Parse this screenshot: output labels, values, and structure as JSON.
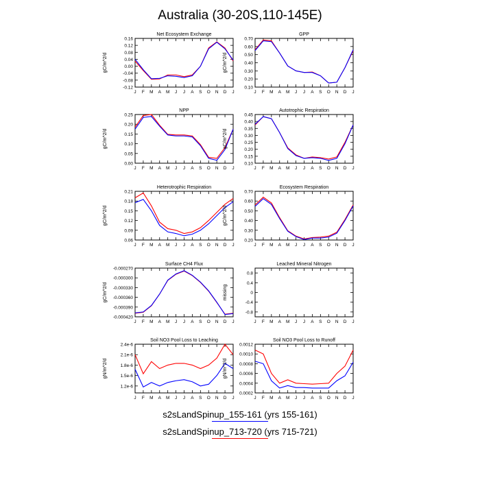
{
  "title": "Australia (30-20S,110-145E)",
  "colors": {
    "series1": "#0000ff",
    "series2": "#ff0000"
  },
  "legend": [
    {
      "label": "s2sLandSpinup_155-161 (yrs 155-161)",
      "color": "#0000ff"
    },
    {
      "label": "s2sLandSpinup_713-720 (yrs 715-721)",
      "color": "#ff0000"
    }
  ],
  "chart_data": [
    {
      "type": "line",
      "title": "Net Ecosystem Exchange",
      "ylabel": "gC/m^2/d",
      "x": [
        "J",
        "F",
        "M",
        "A",
        "M",
        "J",
        "J",
        "A",
        "S",
        "O",
        "N",
        "D",
        "J"
      ],
      "ylim": [
        -0.12,
        0.16
      ],
      "yticks": [
        "-0.12",
        "-0.08",
        "-0.04",
        "0.00",
        "0.04",
        "0.08",
        "0.12",
        "0.16"
      ],
      "yticks_values": [
        -0.12,
        -0.08,
        -0.04,
        0.0,
        0.04,
        0.08,
        0.12,
        0.16
      ],
      "series": [
        {
          "color": "#0000ff",
          "values": [
            0.04,
            -0.02,
            -0.072,
            -0.07,
            -0.055,
            -0.058,
            -0.065,
            -0.055,
            0.0,
            0.1,
            0.138,
            0.1,
            0.035
          ]
        },
        {
          "color": "#ff0000",
          "values": [
            0.03,
            -0.025,
            -0.075,
            -0.073,
            -0.05,
            -0.05,
            -0.06,
            -0.05,
            0.0,
            0.105,
            0.14,
            0.105,
            0.03
          ]
        }
      ]
    },
    {
      "type": "line",
      "title": "GPP",
      "ylabel": "gC/m^2/d",
      "x": [
        "J",
        "F",
        "M",
        "A",
        "M",
        "J",
        "J",
        "A",
        "S",
        "O",
        "N",
        "D",
        "J"
      ],
      "ylim": [
        0.1,
        0.7
      ],
      "yticks": [
        "0.10",
        "0.20",
        "0.30",
        "0.40",
        "0.50",
        "0.60",
        "0.70"
      ],
      "yticks_values": [
        0.1,
        0.2,
        0.3,
        0.4,
        0.5,
        0.6,
        0.7
      ],
      "series": [
        {
          "color": "#0000ff",
          "values": [
            0.55,
            0.67,
            0.66,
            0.52,
            0.36,
            0.3,
            0.28,
            0.28,
            0.24,
            0.15,
            0.16,
            0.34,
            0.56
          ]
        },
        {
          "color": "#ff0000",
          "values": [
            0.56,
            0.68,
            0.67,
            0.52,
            0.36,
            0.3,
            0.28,
            0.285,
            0.24,
            0.15,
            0.16,
            0.34,
            0.55
          ]
        }
      ]
    },
    {
      "type": "line",
      "title": "NPP",
      "ylabel": "gC/m^2/d",
      "x": [
        "J",
        "F",
        "M",
        "A",
        "M",
        "J",
        "J",
        "A",
        "S",
        "O",
        "N",
        "D",
        "J"
      ],
      "ylim": [
        0.0,
        0.25
      ],
      "yticks": [
        "0.00",
        "0.05",
        "0.10",
        "0.15",
        "0.20",
        "0.25"
      ],
      "yticks_values": [
        0.0,
        0.05,
        0.1,
        0.15,
        0.2,
        0.25
      ],
      "series": [
        {
          "color": "#0000ff",
          "values": [
            0.175,
            0.235,
            0.24,
            0.19,
            0.145,
            0.14,
            0.14,
            0.135,
            0.09,
            0.025,
            0.015,
            0.07,
            0.175
          ]
        },
        {
          "color": "#ff0000",
          "values": [
            0.185,
            0.245,
            0.25,
            0.195,
            0.148,
            0.145,
            0.145,
            0.14,
            0.095,
            0.03,
            0.025,
            0.08,
            0.175
          ]
        }
      ]
    },
    {
      "type": "line",
      "title": "Autotrophic Respiration",
      "ylabel": "gC/m^2/d",
      "x": [
        "J",
        "F",
        "M",
        "A",
        "M",
        "J",
        "J",
        "A",
        "S",
        "O",
        "N",
        "D",
        "J"
      ],
      "ylim": [
        0.1,
        0.45
      ],
      "yticks": [
        "0.10",
        "0.15",
        "0.20",
        "0.25",
        "0.30",
        "0.35",
        "0.40",
        "0.45"
      ],
      "yticks_values": [
        0.1,
        0.15,
        0.2,
        0.25,
        0.3,
        0.35,
        0.4,
        0.45
      ],
      "series": [
        {
          "color": "#0000ff",
          "values": [
            0.38,
            0.435,
            0.42,
            0.32,
            0.205,
            0.155,
            0.135,
            0.14,
            0.135,
            0.12,
            0.135,
            0.24,
            0.375
          ]
        },
        {
          "color": "#ff0000",
          "values": [
            0.375,
            0.435,
            0.42,
            0.32,
            0.21,
            0.16,
            0.135,
            0.145,
            0.14,
            0.13,
            0.145,
            0.25,
            0.375
          ]
        }
      ]
    },
    {
      "type": "line",
      "title": "Heterotrophic Respiration",
      "ylabel": "gC/m^2/d",
      "x": [
        "J",
        "F",
        "M",
        "A",
        "M",
        "J",
        "J",
        "A",
        "S",
        "O",
        "N",
        "D",
        "J"
      ],
      "ylim": [
        0.06,
        0.21
      ],
      "yticks": [
        "0.06",
        "0.09",
        "0.12",
        "0.15",
        "0.18",
        "0.21"
      ],
      "yticks_values": [
        0.06,
        0.09,
        0.12,
        0.15,
        0.18,
        0.21
      ],
      "series": [
        {
          "color": "#0000ff",
          "values": [
            0.175,
            0.185,
            0.15,
            0.105,
            0.085,
            0.08,
            0.073,
            0.078,
            0.09,
            0.11,
            0.135,
            0.16,
            0.178
          ]
        },
        {
          "color": "#ff0000",
          "values": [
            0.19,
            0.205,
            0.165,
            0.115,
            0.095,
            0.09,
            0.08,
            0.085,
            0.098,
            0.12,
            0.145,
            0.17,
            0.188
          ]
        }
      ]
    },
    {
      "type": "line",
      "title": "Ecosystem Respiration",
      "ylabel": "gC/m^2/d",
      "x": [
        "J",
        "F",
        "M",
        "A",
        "M",
        "J",
        "J",
        "A",
        "S",
        "O",
        "N",
        "D",
        "J"
      ],
      "ylim": [
        0.2,
        0.7
      ],
      "yticks": [
        "0.20",
        "0.30",
        "0.40",
        "0.50",
        "0.60",
        "0.70"
      ],
      "yticks_values": [
        0.2,
        0.3,
        0.4,
        0.5,
        0.6,
        0.7
      ],
      "series": [
        {
          "color": "#0000ff",
          "values": [
            0.545,
            0.625,
            0.565,
            0.42,
            0.29,
            0.235,
            0.205,
            0.22,
            0.22,
            0.23,
            0.27,
            0.4,
            0.55
          ]
        },
        {
          "color": "#ff0000",
          "values": [
            0.56,
            0.64,
            0.58,
            0.43,
            0.295,
            0.24,
            0.21,
            0.225,
            0.23,
            0.24,
            0.28,
            0.41,
            0.56
          ]
        }
      ]
    },
    {
      "type": "line",
      "title": "Surface CH4 Flux",
      "ylabel": "gC/m^2/d",
      "x": [
        "J",
        "F",
        "M",
        "A",
        "M",
        "J",
        "J",
        "A",
        "S",
        "O",
        "N",
        "D",
        "J"
      ],
      "ylim": [
        -0.00042,
        -0.00027
      ],
      "yticks": [
        "-0.000420",
        "-0.000390",
        "-0.000360",
        "-0.000330",
        "-0.000300",
        "-0.000270"
      ],
      "yticks_values": [
        -0.00042,
        -0.00039,
        -0.00036,
        -0.00033,
        -0.0003,
        -0.00027
      ],
      "series": [
        {
          "color": "#0000ff",
          "values": [
            -0.000408,
            -0.000405,
            -0.000385,
            -0.00035,
            -0.000307,
            -0.000288,
            -0.000278,
            -0.000292,
            -0.000313,
            -0.00034,
            -0.000375,
            -0.000413,
            -0.00041
          ]
        },
        {
          "color": "#ff0000",
          "values": [
            -0.000409,
            -0.000406,
            -0.000386,
            -0.00035,
            -0.000308,
            -0.000289,
            -0.000279,
            -0.000293,
            -0.000314,
            -0.000341,
            -0.000376,
            -0.000412,
            -0.000409
          ]
        }
      ]
    },
    {
      "type": "line",
      "title": "Leached Mineral Nitrogen",
      "ylabel": "missing",
      "x": [
        "J",
        "F",
        "M",
        "A",
        "M",
        "J",
        "J",
        "A",
        "S",
        "O",
        "N",
        "D",
        "J"
      ],
      "ylim": [
        -1.0,
        1.0
      ],
      "yticks": [
        "-0.8",
        "-0.4",
        "0",
        "0.4",
        "0.8"
      ],
      "yticks_values": [
        -0.8,
        -0.4,
        0.0,
        0.4,
        0.8
      ],
      "series": []
    },
    {
      "type": "line",
      "title": "Soil NO3 Pool Loss to Leaching",
      "ylabel": "gN/m^2/d",
      "x": [
        "J",
        "F",
        "M",
        "A",
        "M",
        "J",
        "J",
        "A",
        "S",
        "O",
        "N",
        "D",
        "J"
      ],
      "ylim": [
        1e-06,
        2.4e-06
      ],
      "yticks": [
        "1.2e-6",
        "1.5e-6",
        "1.8e-6",
        "2.1e-6",
        "2.4e-6"
      ],
      "yticks_values": [
        1.2e-06,
        1.5e-06,
        1.8e-06,
        2.1e-06,
        2.4e-06
      ],
      "series": [
        {
          "color": "#0000ff",
          "values": [
            1.68e-06,
            1.17e-06,
            1.3e-06,
            1.2e-06,
            1.3e-06,
            1.35e-06,
            1.38e-06,
            1.32e-06,
            1.2e-06,
            1.25e-06,
            1.5e-06,
            1.85e-06,
            1.7e-06
          ]
        },
        {
          "color": "#ff0000",
          "values": [
            2.1e-06,
            1.55e-06,
            1.9e-06,
            1.7e-06,
            1.8e-06,
            1.85e-06,
            1.85e-06,
            1.8e-06,
            1.7e-06,
            1.8e-06,
            2e-06,
            2.4e-06,
            2.1e-06
          ]
        }
      ]
    },
    {
      "type": "line",
      "title": "Soil NO3 Pool Loss to Runoff",
      "ylabel": "gN/m^2/d",
      "x": [
        "J",
        "F",
        "M",
        "A",
        "M",
        "J",
        "J",
        "A",
        "S",
        "O",
        "N",
        "D",
        "J"
      ],
      "ylim": [
        0.0002,
        0.0012
      ],
      "yticks": [
        "0.0002",
        "0.0004",
        "0.0006",
        "0.0008",
        "0.0010",
        "0.0012"
      ],
      "yticks_values": [
        0.0002,
        0.0004,
        0.0006,
        0.0008,
        0.001,
        0.0012
      ],
      "series": [
        {
          "color": "#0000ff",
          "values": [
            0.00085,
            0.0008,
            0.00045,
            0.0003,
            0.00035,
            0.00031,
            0.00031,
            0.0003,
            0.0003,
            0.0003,
            0.00045,
            0.00055,
            0.00083
          ]
        },
        {
          "color": "#ff0000",
          "values": [
            0.00108,
            0.001,
            0.0006,
            0.0004,
            0.00047,
            0.0004,
            0.00039,
            0.00038,
            0.00039,
            0.0004,
            0.0006,
            0.00075,
            0.00108
          ]
        }
      ]
    }
  ]
}
